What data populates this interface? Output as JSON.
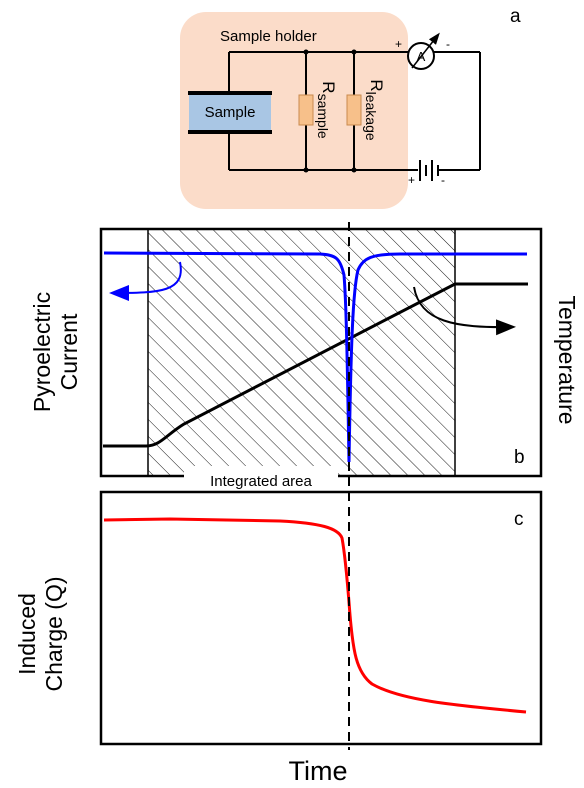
{
  "panel_a": {
    "label": "a",
    "holder_label": "Sample holder",
    "sample_label": "Sample",
    "ammeter_symbol": "A",
    "r_sample": {
      "main": "R",
      "sub": "sample"
    },
    "r_leakage": {
      "main": "R",
      "sub": "leakage"
    },
    "plus": "+",
    "minus": "-",
    "colors": {
      "holder_bg": "#fbdcc9",
      "sample": "#a9c6e4",
      "resistor": "#f7c08a"
    }
  },
  "panel_b": {
    "label": "b",
    "ylabel_left_line1": "Pyroelectric",
    "ylabel_left_line2": "Current",
    "ylabel_right": "Temperature",
    "integrated_label": "Integrated area",
    "colors": {
      "current": "#0000ff",
      "temperature": "#000000"
    }
  },
  "panel_c": {
    "label": "c",
    "ylabel_line1": "Induced",
    "ylabel_line2": "Charge   (Q)",
    "colors": {
      "charge": "#ff0000"
    }
  },
  "xlabel": "Time"
}
